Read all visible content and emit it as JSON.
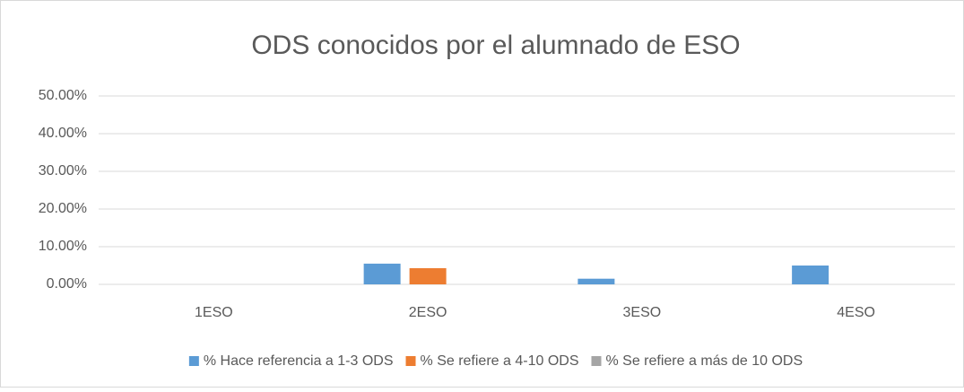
{
  "chart_data": {
    "type": "bar",
    "title": "ODS conocidos por el alumnado de ESO",
    "categories": [
      "1ESO",
      "2ESO",
      "3ESO",
      "4ESO"
    ],
    "series": [
      {
        "name": "% Hace referencia a 1-3 ODS",
        "color": "#5b9bd5",
        "values": [
          0,
          5.5,
          1.5,
          5.0
        ]
      },
      {
        "name": "% Se refiere a 4-10 ODS",
        "color": "#ed7d31",
        "values": [
          0,
          4.3,
          0,
          0
        ]
      },
      {
        "name": "% Se refiere a más de 10 ODS",
        "color": "#a5a5a5",
        "values": [
          0,
          0,
          0,
          0
        ]
      }
    ],
    "ylim": [
      0,
      50
    ],
    "yticks": [
      {
        "value": 0,
        "label": "0.00%"
      },
      {
        "value": 10,
        "label": "10.00%"
      },
      {
        "value": 20,
        "label": "20.00%"
      },
      {
        "value": 30,
        "label": "30.00%"
      },
      {
        "value": 40,
        "label": "40.00%"
      },
      {
        "value": 50,
        "label": "50.00%"
      }
    ],
    "grid": true,
    "legend": "bottom"
  }
}
